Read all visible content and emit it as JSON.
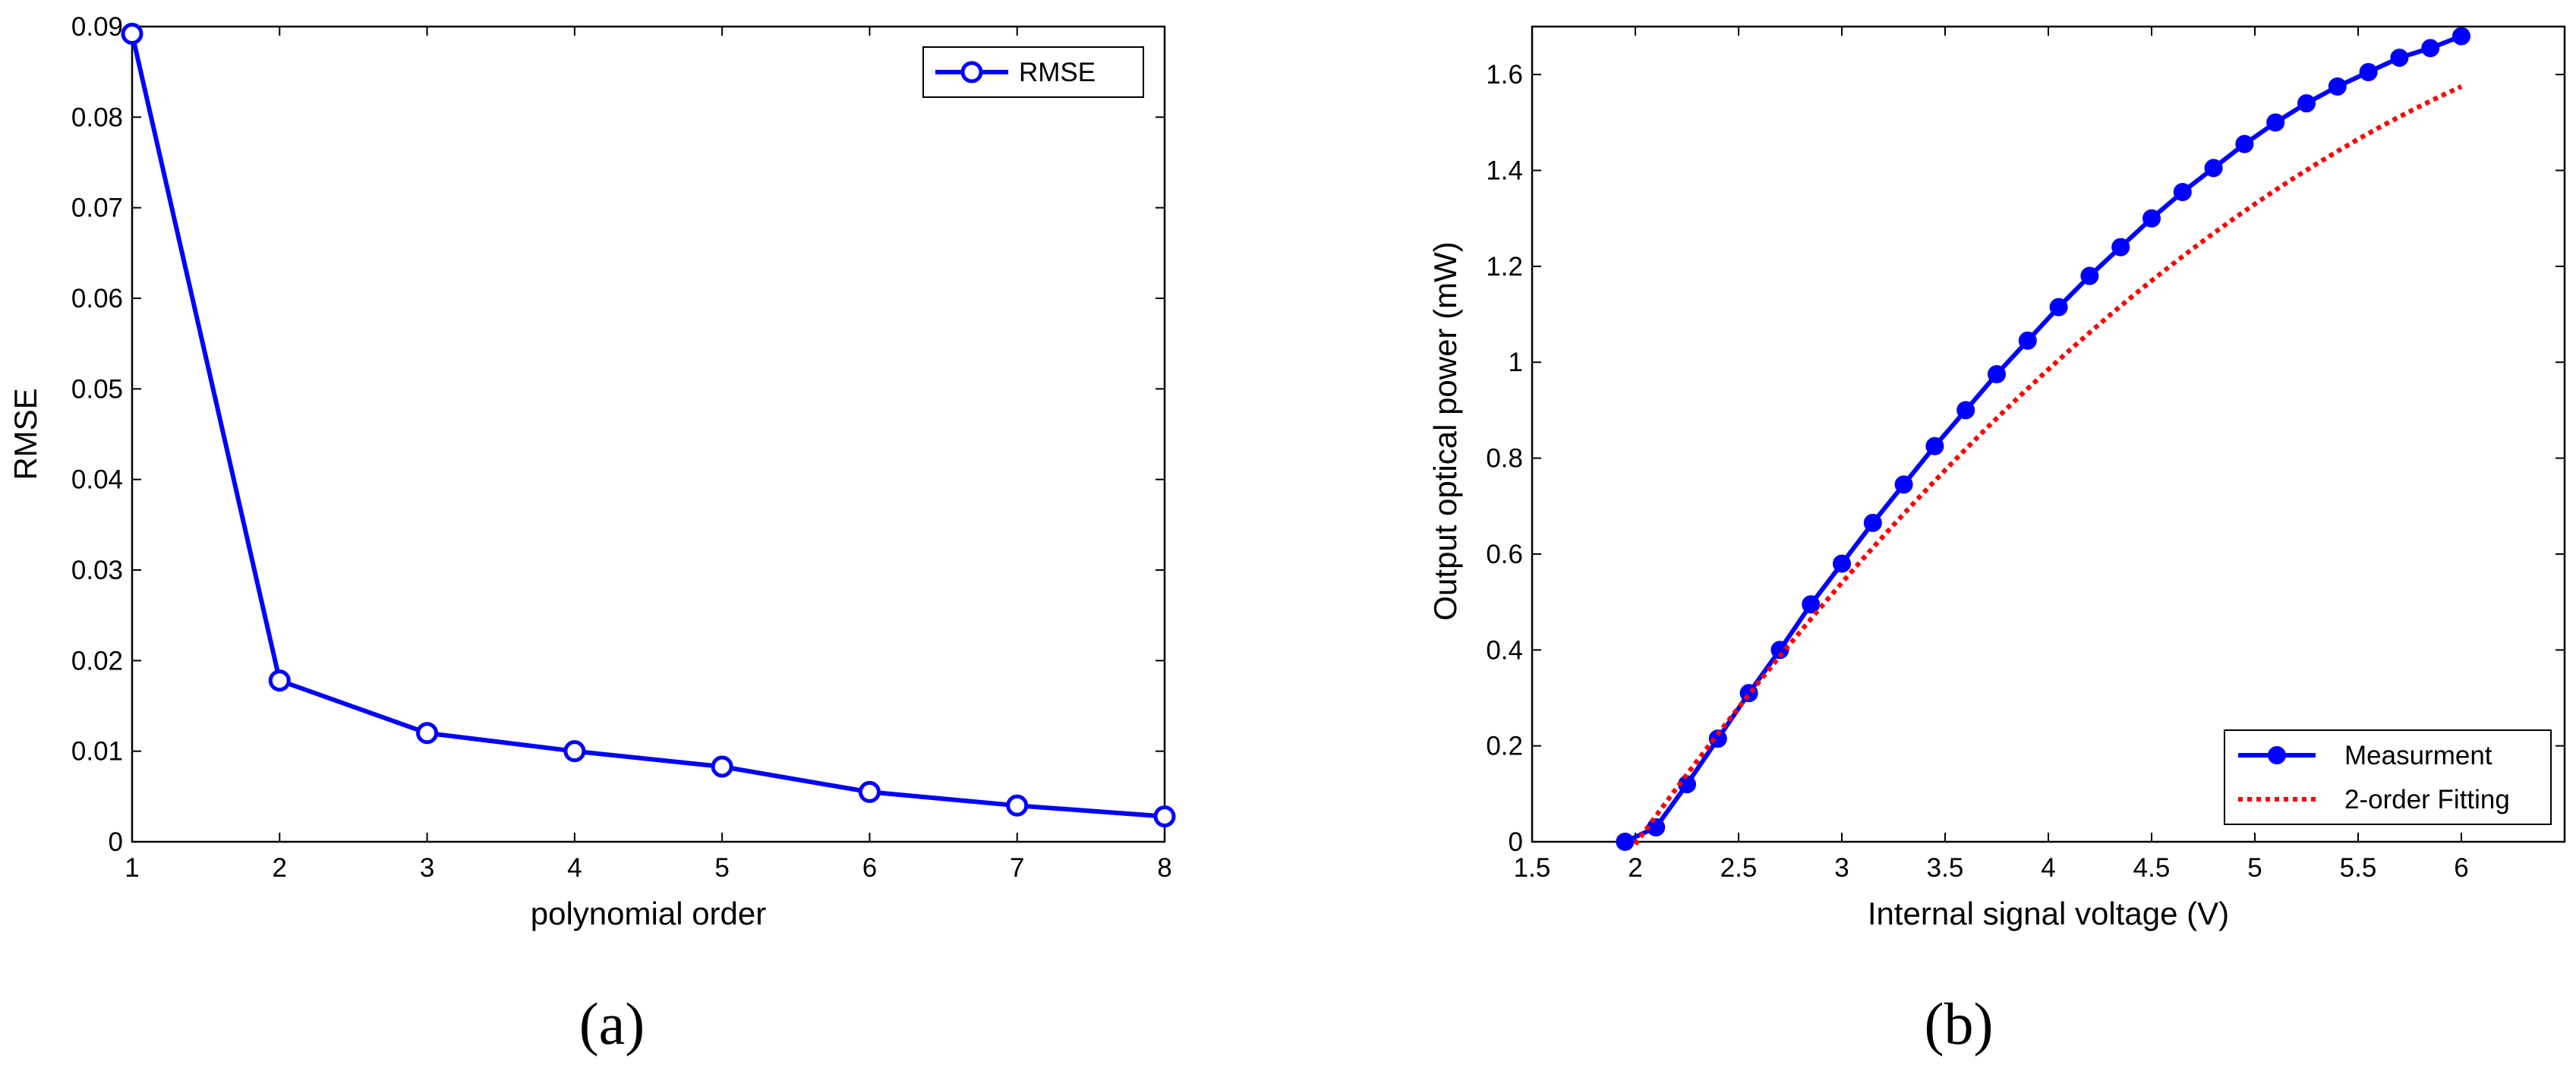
{
  "colors": {
    "series_blue": "#0000ff",
    "fit_red": "#ff0000",
    "axis": "#000000",
    "background": "#ffffff"
  },
  "chart_data": [
    {
      "type": "line",
      "caption": "(a)",
      "title": "",
      "xlabel": "polynomial order",
      "ylabel": "RMSE",
      "xlim": [
        1,
        8
      ],
      "ylim": [
        0,
        0.09
      ],
      "xticks": [
        "1",
        "2",
        "3",
        "4",
        "5",
        "6",
        "7",
        "8"
      ],
      "yticks": [
        "0",
        "0.01",
        "0.02",
        "0.03",
        "0.04",
        "0.05",
        "0.06",
        "0.07",
        "0.08",
        "0.09"
      ],
      "legend_position": "top-right",
      "series": [
        {
          "name": "RMSE",
          "marker": "open-circle",
          "x": [
            1,
            2,
            3,
            4,
            5,
            6,
            7,
            8
          ],
          "y": [
            0.0892,
            0.0178,
            0.012,
            0.01,
            0.0083,
            0.0055,
            0.004,
            0.0028
          ]
        }
      ]
    },
    {
      "type": "line",
      "caption": "(b)",
      "title": "",
      "xlabel": "Internal signal voltage (V)",
      "ylabel": "Output optical power (mW)",
      "xlim": [
        1.5,
        6.5
      ],
      "ylim": [
        0,
        1.7
      ],
      "xticks": [
        "1.5",
        "2",
        "2.5",
        "3",
        "3.5",
        "4",
        "4.5",
        "5",
        "5.5",
        "6"
      ],
      "yticks": [
        "0",
        "0.2",
        "0.4",
        "0.6",
        "0.8",
        "1",
        "1.2",
        "1.4",
        "1.6"
      ],
      "legend_position": "bottom-right",
      "series": [
        {
          "name": "Measurment",
          "marker": "filled-circle",
          "x": [
            1.95,
            2.1,
            2.25,
            2.4,
            2.55,
            2.7,
            2.85,
            3.0,
            3.15,
            3.3,
            3.45,
            3.6,
            3.75,
            3.9,
            4.05,
            4.2,
            4.35,
            4.5,
            4.65,
            4.8,
            4.95,
            5.1,
            5.25,
            5.4,
            5.55,
            5.7,
            5.85,
            6.0
          ],
          "y": [
            0.0,
            0.03,
            0.12,
            0.215,
            0.31,
            0.4,
            0.495,
            0.58,
            0.665,
            0.745,
            0.825,
            0.9,
            0.975,
            1.045,
            1.115,
            1.18,
            1.24,
            1.3,
            1.355,
            1.405,
            1.455,
            1.5,
            1.54,
            1.575,
            1.605,
            1.635,
            1.655,
            1.68
          ]
        },
        {
          "name": "2-order Fitting",
          "style": "dotted",
          "x": [
            2.0,
            2.1,
            2.2,
            2.3,
            2.4,
            2.5,
            2.6,
            2.7,
            2.8,
            2.9,
            3.0,
            3.1,
            3.2,
            3.3,
            3.4,
            3.5,
            3.6,
            3.7,
            3.8,
            3.9,
            4.0,
            4.1,
            4.2,
            4.3,
            4.4,
            4.5,
            4.6,
            4.7,
            4.8,
            4.9,
            5.0,
            5.1,
            5.2,
            5.3,
            5.4,
            5.5,
            5.6,
            5.7,
            5.8,
            5.9,
            6.0
          ],
          "y": [
            -0.005,
            0.054,
            0.112,
            0.169,
            0.225,
            0.28,
            0.334,
            0.387,
            0.439,
            0.49,
            0.54,
            0.589,
            0.637,
            0.684,
            0.73,
            0.775,
            0.819,
            0.862,
            0.904,
            0.945,
            0.985,
            1.024,
            1.062,
            1.099,
            1.135,
            1.17,
            1.204,
            1.237,
            1.269,
            1.3,
            1.33,
            1.359,
            1.387,
            1.414,
            1.44,
            1.465,
            1.489,
            1.512,
            1.534,
            1.555,
            1.575
          ]
        }
      ]
    }
  ]
}
